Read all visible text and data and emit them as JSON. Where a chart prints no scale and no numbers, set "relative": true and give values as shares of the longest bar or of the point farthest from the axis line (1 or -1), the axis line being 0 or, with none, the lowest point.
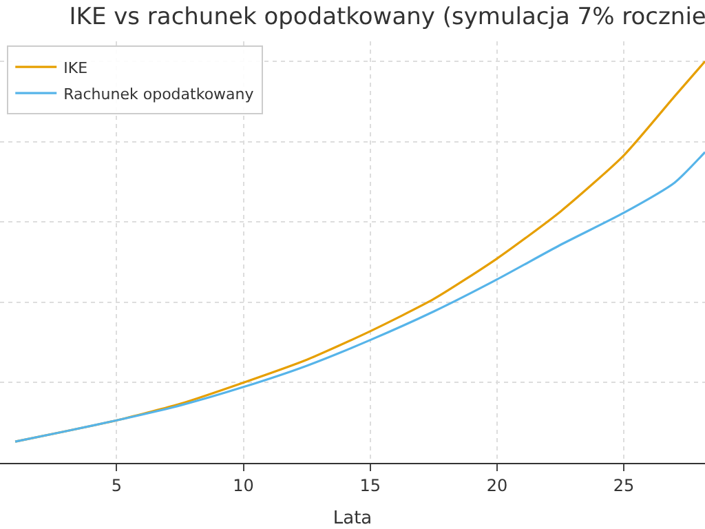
{
  "chart_data": {
    "type": "line",
    "title": "IKE vs rachunek opodatkowany (symulacja 7% rocznie",
    "xlabel": "Lata",
    "relative": true,
    "x": [
      1,
      3,
      5,
      7.5,
      10,
      12.5,
      15,
      17.5,
      20,
      22.5,
      25,
      27,
      28.2
    ],
    "series": [
      {
        "name": "IKE",
        "color": "#e69f00",
        "values": [
          0.053,
          0.079,
          0.106,
          0.147,
          0.2,
          0.257,
          0.328,
          0.408,
          0.509,
          0.626,
          0.766,
          0.913,
          1
        ]
      },
      {
        "name": "Rachunek opodatkowany",
        "color": "#56b4e9",
        "values": [
          0.053,
          0.079,
          0.106,
          0.143,
          0.189,
          0.242,
          0.306,
          0.377,
          0.457,
          0.543,
          0.623,
          0.698,
          0.774
        ]
      }
    ],
    "xlim": [
      0.4,
      28.2
    ],
    "xticks": [
      5,
      10,
      15,
      20,
      25
    ],
    "grid": true,
    "legend": "top left",
    "marker": "none",
    "line_style": "solid"
  }
}
